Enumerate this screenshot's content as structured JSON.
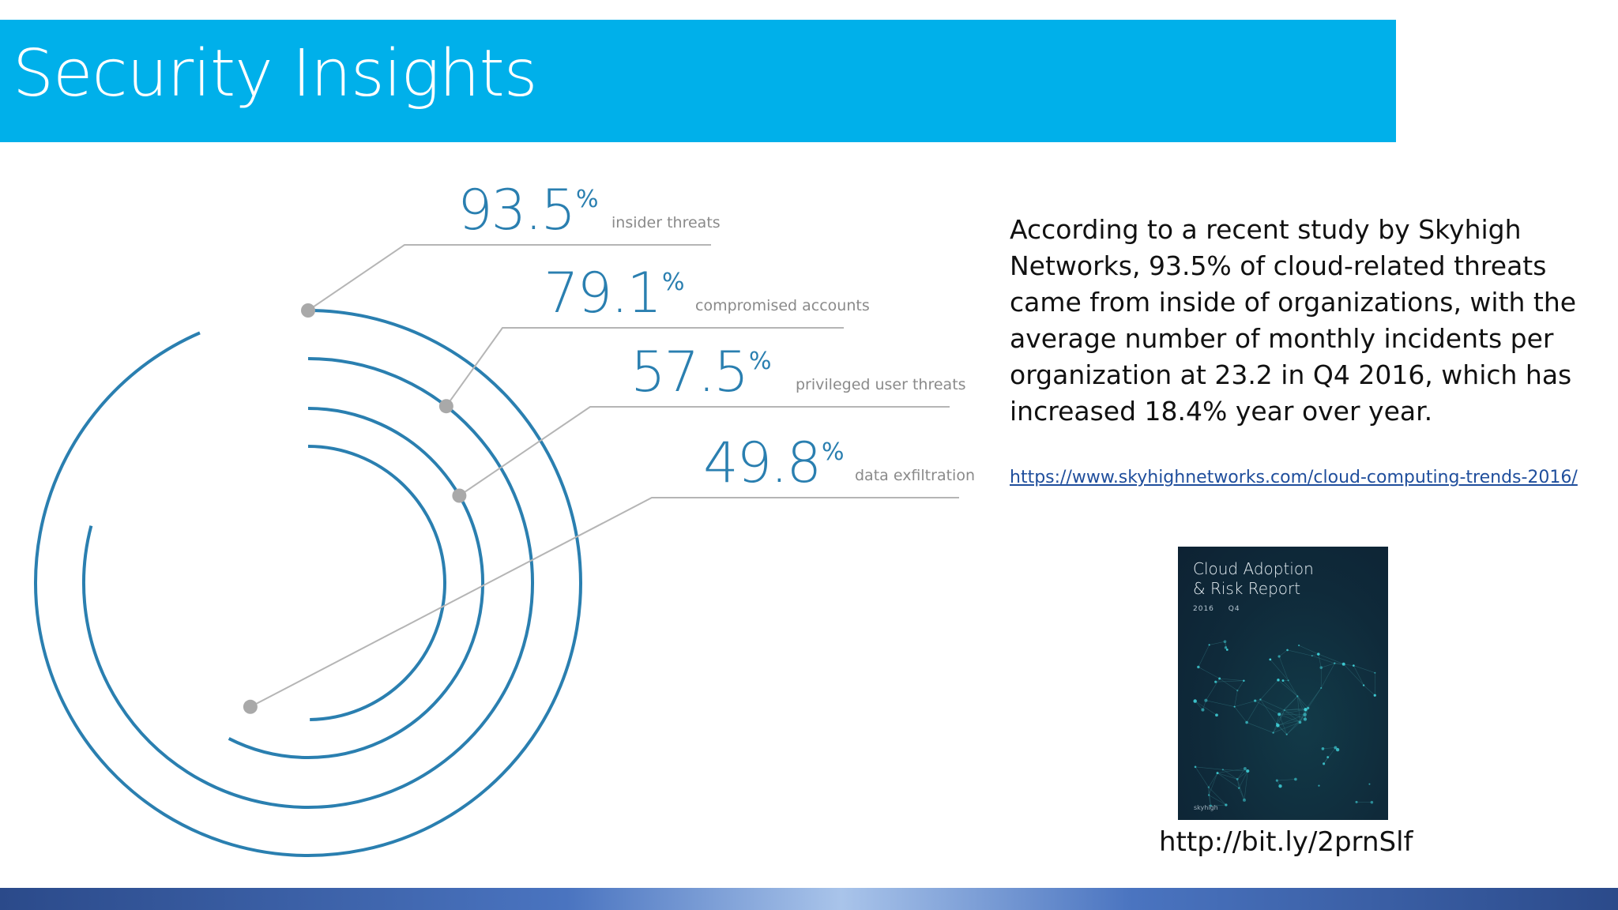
{
  "slide": {
    "title": "Security Insights",
    "description": "According to a recent study by Skyhigh Networks, 93.5% of cloud-related threats came from inside of organizations, with the average number of monthly incidents per organization at 23.2 in Q4 2016, which has increased 18.4% year over year.",
    "link": "https://www.skyhighnetworks.com/cloud-computing-trends-2016/",
    "short_url": "http://bit.ly/2prnSlf"
  },
  "report_cover": {
    "title_line1": "Cloud Adoption",
    "title_line2": "& Risk Report",
    "year": "2016",
    "quarter": "Q4",
    "brand": "skyhigh"
  },
  "colors": {
    "title_bar": "#00b0ea",
    "ring": "#2a7fb0",
    "connector": "#b5b5b5",
    "text": "#111111",
    "link": "#1f4e9c"
  },
  "chart_data": {
    "type": "radial-bar",
    "unit": "%",
    "max": 100,
    "series": [
      {
        "label": "insider threats",
        "value": 93.5,
        "display": "93.5"
      },
      {
        "label": "compromised accounts",
        "value": 79.1,
        "display": "79.1"
      },
      {
        "label": "privileged user threats",
        "value": 57.5,
        "display": "57.5"
      },
      {
        "label": "data exfiltration",
        "value": 49.8,
        "display": "49.8"
      }
    ]
  }
}
